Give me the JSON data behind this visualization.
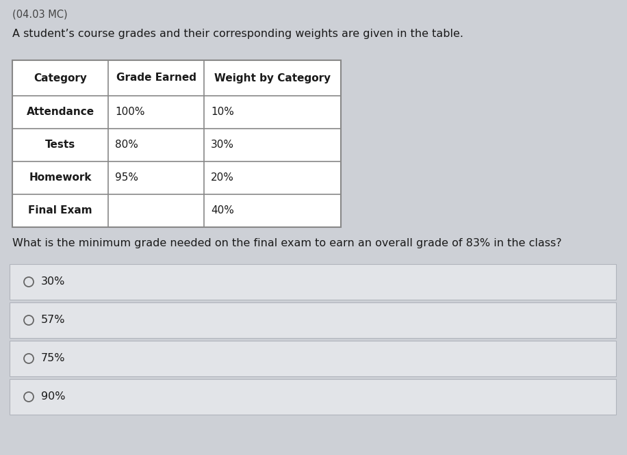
{
  "title_small": "(04.03 MC)",
  "description": "A student’s course grades and their corresponding weights are given in the table.",
  "question": "What is the minimum grade needed on the final exam to earn an overall grade of 83% in the class?",
  "table_headers": [
    "Category",
    "Grade Earned",
    "Weight by Category"
  ],
  "table_rows": [
    [
      "Attendance",
      "100%",
      "10%"
    ],
    [
      "Tests",
      "80%",
      "30%"
    ],
    [
      "Homework",
      "95%",
      "20%"
    ],
    [
      "Final Exam",
      "",
      "40%"
    ]
  ],
  "choices": [
    "30%",
    "57%",
    "75%",
    "90%"
  ],
  "bg_color": "#cdd0d6",
  "table_bg": "#ffffff",
  "table_border": "#888888",
  "text_color": "#1a1a1a",
  "choice_bg": "#e2e4e8",
  "choice_border": "#b0b4bc",
  "font_size_small_title": 10.5,
  "font_size_desc": 11.5,
  "font_size_question": 11.5,
  "font_size_table_header": 11,
  "font_size_table_row": 11,
  "font_size_choice": 11.5
}
